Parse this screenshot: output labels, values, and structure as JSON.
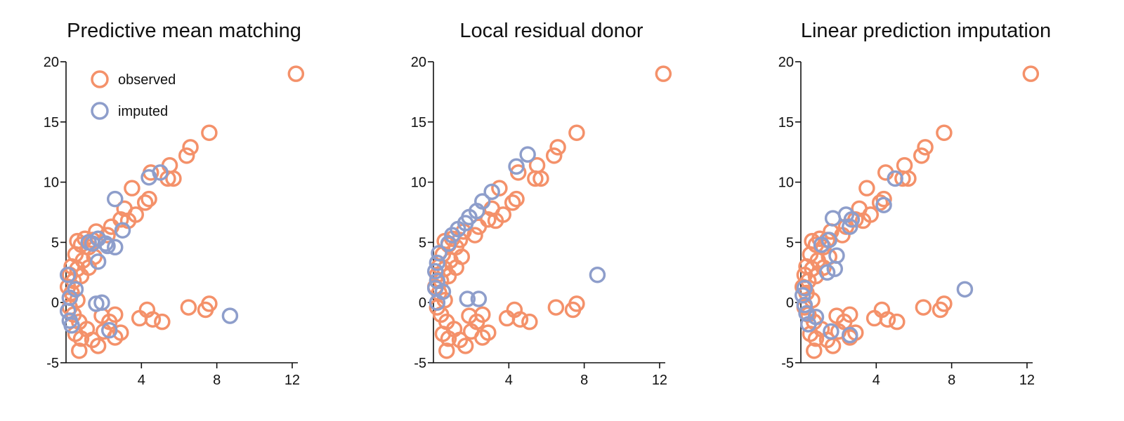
{
  "colors": {
    "observed": "#F4916A",
    "imputed": "#8E9ECB",
    "axis": "#111111"
  },
  "chart_data": [
    {
      "type": "scatter",
      "title": "Predictive mean matching",
      "xlabel": "",
      "ylabel": "",
      "xlim": [
        0,
        12.3
      ],
      "ylim": [
        -5,
        20
      ],
      "xticks": [
        4,
        8,
        12
      ],
      "yticks": [
        -5,
        0,
        5,
        10,
        15,
        20
      ],
      "legend": {
        "position": "top-left",
        "entries": [
          "observed",
          "imputed"
        ]
      },
      "grid": false,
      "series": [
        {
          "name": "observed",
          "points": [
            [
              12.2,
              19
            ],
            [
              7.6,
              14.1
            ],
            [
              6.6,
              12.9
            ],
            [
              6.4,
              12.2
            ],
            [
              5.5,
              11.4
            ],
            [
              5.7,
              10.3
            ],
            [
              5.4,
              10.3
            ],
            [
              4.5,
              10.8
            ],
            [
              4.2,
              8.3
            ],
            [
              4.4,
              8.6
            ],
            [
              3.5,
              9.5
            ],
            [
              3.7,
              7.3
            ],
            [
              3.3,
              6.8
            ],
            [
              3.1,
              7.8
            ],
            [
              2.9,
              6.9
            ],
            [
              2.4,
              6.3
            ],
            [
              2.2,
              5.6
            ],
            [
              1.6,
              5.9
            ],
            [
              1.4,
              5.2
            ],
            [
              1.2,
              4.6
            ],
            [
              1.0,
              5.3
            ],
            [
              0.8,
              4.8
            ],
            [
              0.6,
              5.1
            ],
            [
              0.5,
              4.0
            ],
            [
              0.9,
              3.5
            ],
            [
              1.5,
              3.8
            ],
            [
              0.3,
              3.0
            ],
            [
              0.6,
              2.8
            ],
            [
              0.2,
              2.3
            ],
            [
              0.4,
              1.8
            ],
            [
              0.8,
              2.2
            ],
            [
              1.2,
              2.9
            ],
            [
              0.1,
              1.3
            ],
            [
              0.3,
              0.8
            ],
            [
              0.6,
              0.2
            ],
            [
              0.2,
              -0.4
            ],
            [
              0.4,
              -1.0
            ],
            [
              0.7,
              -1.6
            ],
            [
              0.5,
              -2.6
            ],
            [
              0.8,
              -3.0
            ],
            [
              0.7,
              -4.0
            ],
            [
              1.1,
              -2.2
            ],
            [
              1.4,
              -3.1
            ],
            [
              1.7,
              -3.6
            ],
            [
              2.0,
              -2.4
            ],
            [
              2.3,
              -1.6
            ],
            [
              1.9,
              -1.1
            ],
            [
              2.6,
              -1.0
            ],
            [
              2.9,
              -2.5
            ],
            [
              2.6,
              -2.9
            ],
            [
              3.9,
              -1.3
            ],
            [
              4.3,
              -0.6
            ],
            [
              4.6,
              -1.4
            ],
            [
              5.1,
              -1.6
            ],
            [
              6.5,
              -0.4
            ],
            [
              7.4,
              -0.6
            ],
            [
              7.6,
              -0.1
            ]
          ]
        },
        {
          "name": "imputed",
          "points": [
            [
              8.7,
              -1.1
            ],
            [
              5.0,
              10.8
            ],
            [
              4.4,
              10.4
            ],
            [
              2.6,
              8.6
            ],
            [
              3.0,
              6.0
            ],
            [
              2.6,
              4.6
            ],
            [
              2.2,
              4.7
            ],
            [
              2.1,
              4.9
            ],
            [
              1.7,
              5.3
            ],
            [
              1.4,
              4.9
            ],
            [
              1.7,
              3.4
            ],
            [
              1.2,
              5.0
            ],
            [
              0.5,
              1.1
            ],
            [
              0.1,
              2.3
            ],
            [
              0.2,
              0.4
            ],
            [
              0.1,
              -0.7
            ],
            [
              0.2,
              -1.5
            ],
            [
              0.3,
              -1.9
            ],
            [
              1.6,
              -0.1
            ],
            [
              1.9,
              0.0
            ],
            [
              2.3,
              -2.3
            ]
          ]
        }
      ]
    },
    {
      "type": "scatter",
      "title": "Local residual donor",
      "xlabel": "",
      "ylabel": "",
      "xlim": [
        0,
        12.3
      ],
      "ylim": [
        -5,
        20
      ],
      "xticks": [
        4,
        8,
        12
      ],
      "yticks": [
        -5,
        0,
        5,
        10,
        15,
        20
      ],
      "grid": false,
      "series": [
        {
          "name": "observed",
          "points": [
            [
              12.2,
              19
            ],
            [
              7.6,
              14.1
            ],
            [
              6.6,
              12.9
            ],
            [
              6.4,
              12.2
            ],
            [
              5.5,
              11.4
            ],
            [
              5.7,
              10.3
            ],
            [
              5.4,
              10.3
            ],
            [
              4.5,
              10.8
            ],
            [
              4.2,
              8.3
            ],
            [
              4.4,
              8.6
            ],
            [
              3.5,
              9.5
            ],
            [
              3.7,
              7.3
            ],
            [
              3.3,
              6.8
            ],
            [
              3.1,
              7.8
            ],
            [
              2.9,
              6.9
            ],
            [
              2.4,
              6.3
            ],
            [
              2.2,
              5.6
            ],
            [
              1.6,
              5.9
            ],
            [
              1.4,
              5.2
            ],
            [
              1.2,
              4.6
            ],
            [
              1.0,
              5.3
            ],
            [
              0.8,
              4.8
            ],
            [
              0.6,
              5.1
            ],
            [
              0.5,
              4.0
            ],
            [
              0.9,
              3.5
            ],
            [
              1.5,
              3.8
            ],
            [
              0.3,
              3.0
            ],
            [
              0.6,
              2.8
            ],
            [
              0.2,
              2.3
            ],
            [
              0.4,
              1.8
            ],
            [
              0.8,
              2.2
            ],
            [
              1.2,
              2.9
            ],
            [
              0.1,
              1.3
            ],
            [
              0.3,
              0.8
            ],
            [
              0.6,
              0.2
            ],
            [
              0.2,
              -0.4
            ],
            [
              0.4,
              -1.0
            ],
            [
              0.7,
              -1.6
            ],
            [
              0.5,
              -2.6
            ],
            [
              0.8,
              -3.0
            ],
            [
              0.7,
              -4.0
            ],
            [
              1.1,
              -2.2
            ],
            [
              1.4,
              -3.1
            ],
            [
              1.7,
              -3.6
            ],
            [
              2.0,
              -2.4
            ],
            [
              2.3,
              -1.6
            ],
            [
              1.9,
              -1.1
            ],
            [
              2.6,
              -1.0
            ],
            [
              2.9,
              -2.5
            ],
            [
              2.6,
              -2.9
            ],
            [
              3.9,
              -1.3
            ],
            [
              4.3,
              -0.6
            ],
            [
              4.6,
              -1.4
            ],
            [
              5.1,
              -1.6
            ],
            [
              6.5,
              -0.4
            ],
            [
              7.4,
              -0.6
            ],
            [
              7.6,
              -0.1
            ]
          ]
        },
        {
          "name": "imputed",
          "points": [
            [
              8.7,
              2.3
            ],
            [
              5.0,
              12.3
            ],
            [
              4.4,
              11.3
            ],
            [
              3.1,
              9.2
            ],
            [
              2.6,
              8.4
            ],
            [
              2.3,
              7.6
            ],
            [
              1.9,
              7.1
            ],
            [
              1.7,
              6.6
            ],
            [
              1.3,
              6.1
            ],
            [
              1.0,
              5.6
            ],
            [
              0.8,
              4.9
            ],
            [
              0.3,
              4.1
            ],
            [
              0.2,
              3.3
            ],
            [
              0.1,
              2.6
            ],
            [
              0.2,
              1.8
            ],
            [
              0.1,
              1.2
            ],
            [
              0.5,
              0.9
            ],
            [
              1.8,
              0.3
            ],
            [
              2.4,
              0.3
            ],
            [
              0.2,
              0.0
            ]
          ]
        }
      ]
    },
    {
      "type": "scatter",
      "title": "Linear prediction imputation",
      "xlabel": "",
      "ylabel": "",
      "xlim": [
        0,
        12.3
      ],
      "ylim": [
        -5,
        20
      ],
      "xticks": [
        4,
        8,
        12
      ],
      "yticks": [
        -5,
        0,
        5,
        10,
        15,
        20
      ],
      "grid": false,
      "series": [
        {
          "name": "observed",
          "points": [
            [
              12.2,
              19
            ],
            [
              7.6,
              14.1
            ],
            [
              6.6,
              12.9
            ],
            [
              6.4,
              12.2
            ],
            [
              5.5,
              11.4
            ],
            [
              5.7,
              10.3
            ],
            [
              5.4,
              10.3
            ],
            [
              4.5,
              10.8
            ],
            [
              4.2,
              8.3
            ],
            [
              4.4,
              8.6
            ],
            [
              3.5,
              9.5
            ],
            [
              3.7,
              7.3
            ],
            [
              3.3,
              6.8
            ],
            [
              3.1,
              7.8
            ],
            [
              2.9,
              6.9
            ],
            [
              2.4,
              6.3
            ],
            [
              2.2,
              5.6
            ],
            [
              1.6,
              5.9
            ],
            [
              1.4,
              5.2
            ],
            [
              1.2,
              4.6
            ],
            [
              1.0,
              5.3
            ],
            [
              0.8,
              4.8
            ],
            [
              0.6,
              5.1
            ],
            [
              0.5,
              4.0
            ],
            [
              0.9,
              3.5
            ],
            [
              1.5,
              3.8
            ],
            [
              0.3,
              3.0
            ],
            [
              0.6,
              2.8
            ],
            [
              0.2,
              2.3
            ],
            [
              0.4,
              1.8
            ],
            [
              0.8,
              2.2
            ],
            [
              1.2,
              2.9
            ],
            [
              0.1,
              1.3
            ],
            [
              0.3,
              0.8
            ],
            [
              0.6,
              0.2
            ],
            [
              0.2,
              -0.4
            ],
            [
              0.4,
              -1.0
            ],
            [
              0.7,
              -1.6
            ],
            [
              0.5,
              -2.6
            ],
            [
              0.8,
              -3.0
            ],
            [
              0.7,
              -4.0
            ],
            [
              1.1,
              -2.2
            ],
            [
              1.4,
              -3.1
            ],
            [
              1.7,
              -3.6
            ],
            [
              2.0,
              -2.4
            ],
            [
              2.3,
              -1.6
            ],
            [
              1.9,
              -1.1
            ],
            [
              2.6,
              -1.0
            ],
            [
              2.9,
              -2.5
            ],
            [
              2.6,
              -2.9
            ],
            [
              3.9,
              -1.3
            ],
            [
              4.3,
              -0.6
            ],
            [
              4.6,
              -1.4
            ],
            [
              5.1,
              -1.6
            ],
            [
              6.5,
              -0.4
            ],
            [
              7.4,
              -0.6
            ],
            [
              7.6,
              -0.1
            ]
          ]
        },
        {
          "name": "imputed",
          "points": [
            [
              8.7,
              1.1
            ],
            [
              5.0,
              10.3
            ],
            [
              4.4,
              8.1
            ],
            [
              2.7,
              6.9
            ],
            [
              2.6,
              6.3
            ],
            [
              2.4,
              7.3
            ],
            [
              1.7,
              7.0
            ],
            [
              1.9,
              3.9
            ],
            [
              1.8,
              2.8
            ],
            [
              1.4,
              2.5
            ],
            [
              1.5,
              5.2
            ],
            [
              1.1,
              4.8
            ],
            [
              0.2,
              1.2
            ],
            [
              0.1,
              0.6
            ],
            [
              0.2,
              -0.2
            ],
            [
              0.3,
              -0.9
            ],
            [
              0.4,
              -1.8
            ],
            [
              0.8,
              -1.2
            ],
            [
              1.6,
              -2.4
            ],
            [
              2.6,
              -2.7
            ]
          ]
        }
      ]
    }
  ]
}
